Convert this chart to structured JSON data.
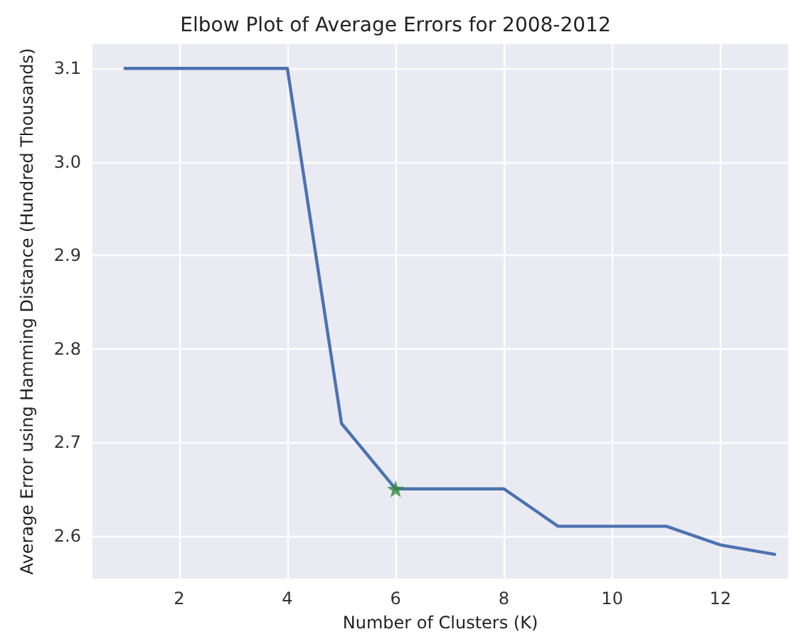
{
  "chart_data": {
    "type": "line",
    "title": "Elbow Plot of Average Errors for 2008-2012",
    "xlabel": "Number of Clusters (K)",
    "ylabel": "Average Error using Hamming Distance (Hundred Thousands)",
    "x": [
      1,
      2,
      3,
      4,
      5,
      6,
      7,
      8,
      9,
      10,
      11,
      12,
      13
    ],
    "series": [
      {
        "color": "#4c72b0",
        "values": [
          3.1,
          3.1,
          3.1,
          3.1,
          2.72,
          2.65,
          2.65,
          2.65,
          2.61,
          2.61,
          2.61,
          2.59,
          2.58
        ],
        "marker": "none",
        "line_style": "solid"
      },
      {
        "type": "scatter",
        "x": [
          6
        ],
        "color": "#2e8b3a",
        "values": [
          2.65
        ],
        "marker": "star"
      }
    ],
    "xlim": [
      0.4,
      13.25
    ],
    "ylim": [
      2.554,
      3.126
    ],
    "xticks": [
      2,
      4,
      6,
      8,
      10,
      12
    ],
    "yticks": [
      2.6,
      2.7,
      2.8,
      2.9,
      {
        "value": 3,
        "label": "3.0"
      },
      3.1
    ],
    "grid": true
  }
}
